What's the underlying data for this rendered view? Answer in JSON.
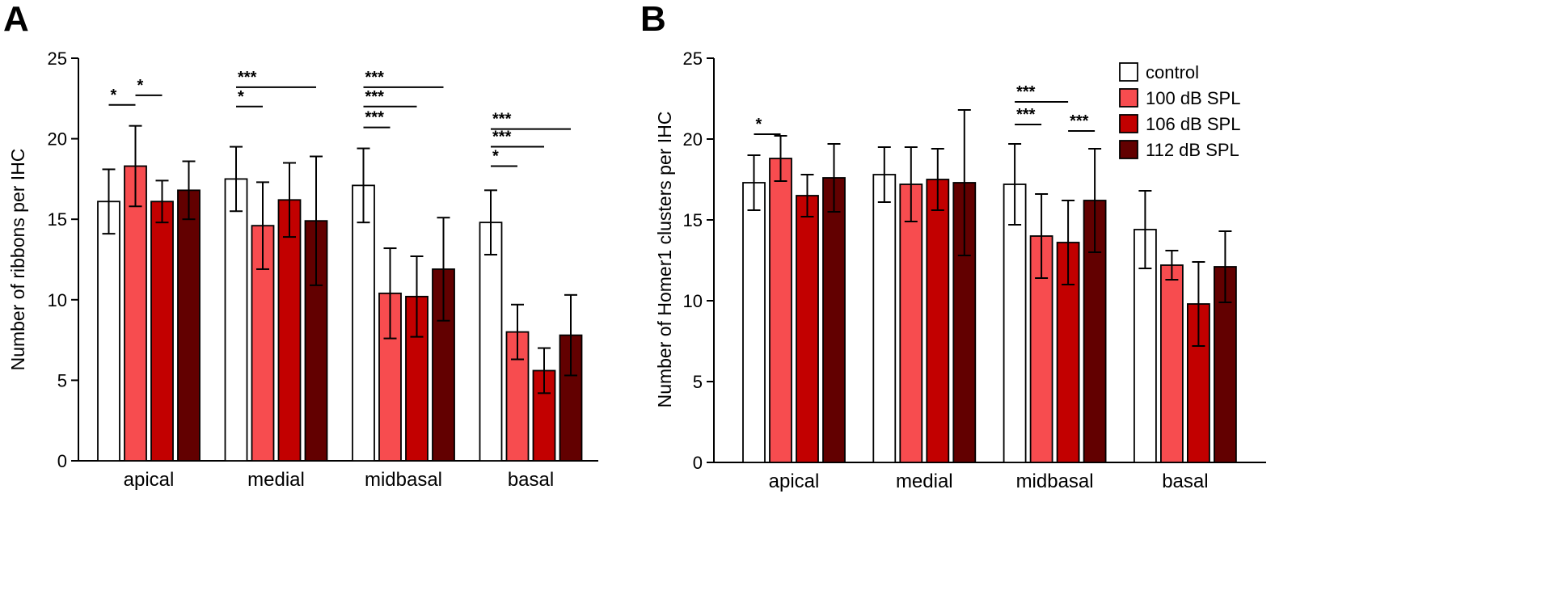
{
  "colors": {
    "control": "#ffffff",
    "100 dB SPL": "#f74c4f",
    "106 dB SPL": "#c20000",
    "112 dB SPL": "#620000",
    "outline": "#000000"
  },
  "legend_labels": [
    "control",
    "100 dB SPL",
    "106 dB SPL",
    "112 dB SPL"
  ],
  "chart_data": [
    {
      "panel": "A",
      "type": "bar",
      "ylabel": "Number of ribbons per IHC",
      "xlabel": "",
      "ylim": [
        0,
        25
      ],
      "yticks": [
        0,
        5,
        10,
        15,
        20,
        25
      ],
      "categories": [
        "apical",
        "medial",
        "midbasal",
        "basal"
      ],
      "series": [
        {
          "name": "control",
          "values": [
            16.1,
            17.5,
            17.1,
            14.8
          ],
          "errors": [
            2.0,
            2.0,
            2.3,
            2.0
          ]
        },
        {
          "name": "100 dB SPL",
          "values": [
            18.3,
            14.6,
            10.4,
            8.0
          ],
          "errors": [
            2.5,
            2.7,
            2.8,
            1.7
          ]
        },
        {
          "name": "106 dB SPL",
          "values": [
            16.1,
            16.2,
            10.2,
            5.6
          ],
          "errors": [
            1.3,
            2.3,
            2.5,
            1.4
          ]
        },
        {
          "name": "112 dB SPL",
          "values": [
            16.8,
            14.9,
            11.9,
            7.8
          ],
          "errors": [
            1.8,
            4.0,
            3.2,
            2.5
          ]
        }
      ],
      "significance": [
        {
          "category": "apical",
          "from": 0,
          "to": 1,
          "label": "*",
          "level": 22.1
        },
        {
          "category": "apical",
          "from": 1,
          "to": 2,
          "label": "*",
          "level": 22.7
        },
        {
          "category": "medial",
          "from": 0,
          "to": 3,
          "label": "***",
          "level": 23.2
        },
        {
          "category": "medial",
          "from": 0,
          "to": 1,
          "label": "*",
          "level": 22.0
        },
        {
          "category": "midbasal",
          "from": 0,
          "to": 3,
          "label": "***",
          "level": 23.2
        },
        {
          "category": "midbasal",
          "from": 0,
          "to": 2,
          "label": "***",
          "level": 22.0
        },
        {
          "category": "midbasal",
          "from": 0,
          "to": 1,
          "label": "***",
          "level": 20.7
        },
        {
          "category": "basal",
          "from": 0,
          "to": 3,
          "label": "***",
          "level": 20.6
        },
        {
          "category": "basal",
          "from": 0,
          "to": 2,
          "label": "***",
          "level": 19.5
        },
        {
          "category": "basal",
          "from": 0,
          "to": 1,
          "label": "*",
          "level": 18.3
        }
      ]
    },
    {
      "panel": "B",
      "type": "bar",
      "ylabel": "Number of Homer1 clusters per IHC",
      "xlabel": "",
      "ylim": [
        0,
        25
      ],
      "yticks": [
        0,
        5,
        10,
        15,
        20,
        25
      ],
      "categories": [
        "apical",
        "medial",
        "midbasal",
        "basal"
      ],
      "legend_position": "top-right",
      "series": [
        {
          "name": "control",
          "values": [
            17.3,
            17.8,
            17.2,
            14.4
          ],
          "errors": [
            1.7,
            1.7,
            2.5,
            2.4
          ]
        },
        {
          "name": "100 dB SPL",
          "values": [
            18.8,
            17.2,
            14.0,
            12.2
          ],
          "errors": [
            1.4,
            2.3,
            2.6,
            0.9
          ]
        },
        {
          "name": "106 dB SPL",
          "values": [
            16.5,
            17.5,
            13.6,
            9.8
          ],
          "errors": [
            1.3,
            1.9,
            2.6,
            2.6
          ]
        },
        {
          "name": "112 dB SPL",
          "values": [
            17.6,
            17.3,
            16.2,
            12.1
          ],
          "errors": [
            2.1,
            4.5,
            3.2,
            2.2
          ]
        }
      ],
      "significance": [
        {
          "category": "apical",
          "from": 0,
          "to": 1,
          "label": "*",
          "level": 20.3
        },
        {
          "category": "midbasal",
          "from": 0,
          "to": 2,
          "label": "***",
          "level": 22.3
        },
        {
          "category": "midbasal",
          "from": 0,
          "to": 1,
          "label": "***",
          "level": 20.9
        },
        {
          "category": "midbasal",
          "from": 2,
          "to": 3,
          "label": "***",
          "level": 20.5
        }
      ]
    }
  ]
}
